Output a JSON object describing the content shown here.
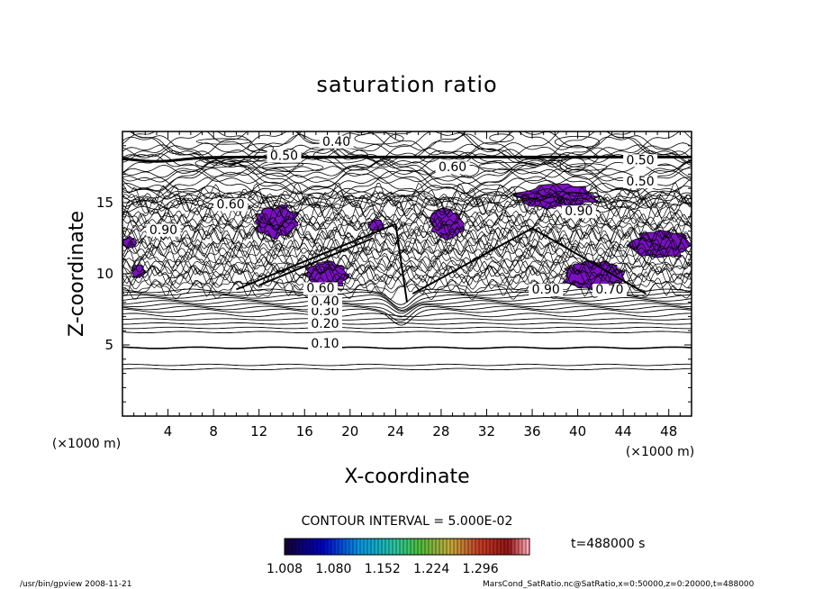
{
  "chart_data": {
    "type": "contour",
    "title": "saturation ratio",
    "xlabel": "X-coordinate",
    "ylabel": "Z-coordinate",
    "x_unit": "(×1000 m)",
    "z_unit": "(×1000 m)",
    "xlim": [
      0,
      50
    ],
    "ylim": [
      0,
      20
    ],
    "x_ticks": [
      4,
      8,
      12,
      16,
      20,
      24,
      28,
      32,
      36,
      40,
      44,
      48
    ],
    "y_ticks": [
      5,
      10,
      15
    ],
    "contour_interval_text": "CONTOUR INTERVAL = 5.000E-02",
    "contour_labels": [
      {
        "text": "0.10",
        "x": 17.8,
        "z": 4.8
      },
      {
        "text": "0.20",
        "x": 17.8,
        "z": 6.2
      },
      {
        "text": "0.30",
        "x": 17.8,
        "z": 7.1
      },
      {
        "text": "0.40",
        "x": 17.8,
        "z": 7.8
      },
      {
        "text": "0.60",
        "x": 17.4,
        "z": 8.7
      },
      {
        "text": "0.40",
        "x": 18.8,
        "z": 19.0
      },
      {
        "text": "0.50",
        "x": 14.2,
        "z": 18.0
      },
      {
        "text": "0.60",
        "x": 29.0,
        "z": 17.2
      },
      {
        "text": "0.50",
        "x": 45.5,
        "z": 17.7
      },
      {
        "text": "0.50",
        "x": 45.5,
        "z": 16.2
      },
      {
        "text": "0.60",
        "x": 9.5,
        "z": 14.6
      },
      {
        "text": "0.90",
        "x": 3.6,
        "z": 12.8
      },
      {
        "text": "0.90",
        "x": 40.1,
        "z": 14.1
      },
      {
        "text": "0.70",
        "x": 42.8,
        "z": 8.6
      },
      {
        "text": "0.90",
        "x": 37.2,
        "z": 8.6
      }
    ],
    "supersaturated_regions": [
      {
        "x": [
          11.5,
          15.5
        ],
        "z": [
          12.5,
          14.8
        ]
      },
      {
        "x": [
          16.0,
          20.0
        ],
        "z": [
          9.0,
          10.9
        ]
      },
      {
        "x": [
          27.0,
          30.0
        ],
        "z": [
          12.4,
          14.6
        ]
      },
      {
        "x": [
          34.5,
          42.0
        ],
        "z": [
          14.6,
          16.3
        ]
      },
      {
        "x": [
          38.5,
          44.0
        ],
        "z": [
          8.8,
          11.0
        ]
      },
      {
        "x": [
          44.5,
          50.0
        ],
        "z": [
          11.0,
          13.0
        ]
      },
      {
        "x": [
          0.0,
          1.2
        ],
        "z": [
          11.8,
          12.6
        ]
      },
      {
        "x": [
          0.8,
          2.0
        ],
        "z": [
          9.7,
          10.7
        ]
      },
      {
        "x": [
          21.5,
          23.0
        ],
        "z": [
          13.0,
          13.8
        ]
      }
    ],
    "colorbar": {
      "ticks": [
        "1.008",
        "1.080",
        "1.152",
        "1.224",
        "1.296"
      ],
      "range": [
        1.008,
        1.368
      ]
    },
    "time_label": "t=488000 s"
  },
  "footer": {
    "left": "/usr/bin/gpview   2008-11-21",
    "right": "MarsCond_SatRatio.nc@SatRatio,x=0:50000,z=0:20000,t=488000"
  },
  "colors": {
    "supersaturation": "#7a10c2",
    "line": "#000000"
  }
}
